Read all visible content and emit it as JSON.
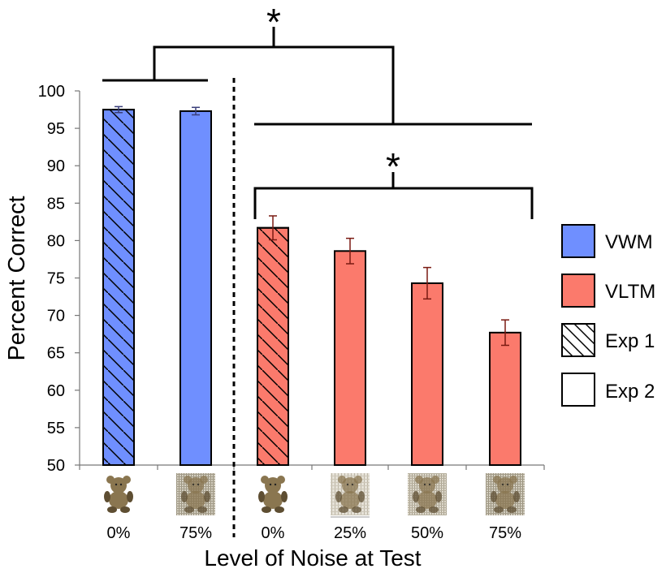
{
  "chart_data": {
    "type": "bar",
    "ylabel": "Percent Correct",
    "xlabel": "Level of Noise at Test",
    "ylim": [
      50,
      100
    ],
    "yticks": [
      50,
      55,
      60,
      65,
      70,
      75,
      80,
      85,
      90,
      95,
      100
    ],
    "grid": false,
    "bars": [
      {
        "category": "0%",
        "group": "VWM",
        "experiment": "Exp 1",
        "value": 97.5,
        "error": 0.4,
        "stimulus": "teddy-bear-0-noise"
      },
      {
        "category": "75%",
        "group": "VWM",
        "experiment": "Exp 2",
        "value": 97.3,
        "error": 0.5,
        "stimulus": "teddy-bear-75-noise"
      },
      {
        "category": "0%",
        "group": "VLTM",
        "experiment": "Exp 1",
        "value": 81.7,
        "error": 1.6,
        "stimulus": "teddy-bear-0-noise"
      },
      {
        "category": "25%",
        "group": "VLTM",
        "experiment": "Exp 2",
        "value": 78.6,
        "error": 1.7,
        "stimulus": "teddy-bear-25-noise"
      },
      {
        "category": "50%",
        "group": "VLTM",
        "experiment": "Exp 2",
        "value": 74.3,
        "error": 2.1,
        "stimulus": "teddy-bear-50-noise"
      },
      {
        "category": "75%",
        "group": "VLTM",
        "experiment": "Exp 2",
        "value": 67.7,
        "error": 1.7,
        "stimulus": "teddy-bear-75-noise"
      }
    ],
    "significance": [
      {
        "label": "*",
        "between": [
          "VWM",
          "VLTM"
        ]
      },
      {
        "label": "*",
        "between": [
          "VLTM 0%",
          "VLTM 75%"
        ]
      }
    ],
    "legend": {
      "placement": "right",
      "items": [
        {
          "label": "VWM",
          "style": "fill",
          "color": "#6f8fff"
        },
        {
          "label": "VLTM",
          "style": "fill",
          "color": "#fb7a6c"
        },
        {
          "label": "Exp 1",
          "style": "hatch",
          "color": "#000000"
        },
        {
          "label": "Exp 2",
          "style": "empty",
          "color": "#ffffff"
        }
      ]
    },
    "colors": {
      "VWM": "#6f8fff",
      "VLTM": "#fb7a6c",
      "error_VWM": "#3a3f7a",
      "error_VLTM": "#7a1a12"
    }
  }
}
